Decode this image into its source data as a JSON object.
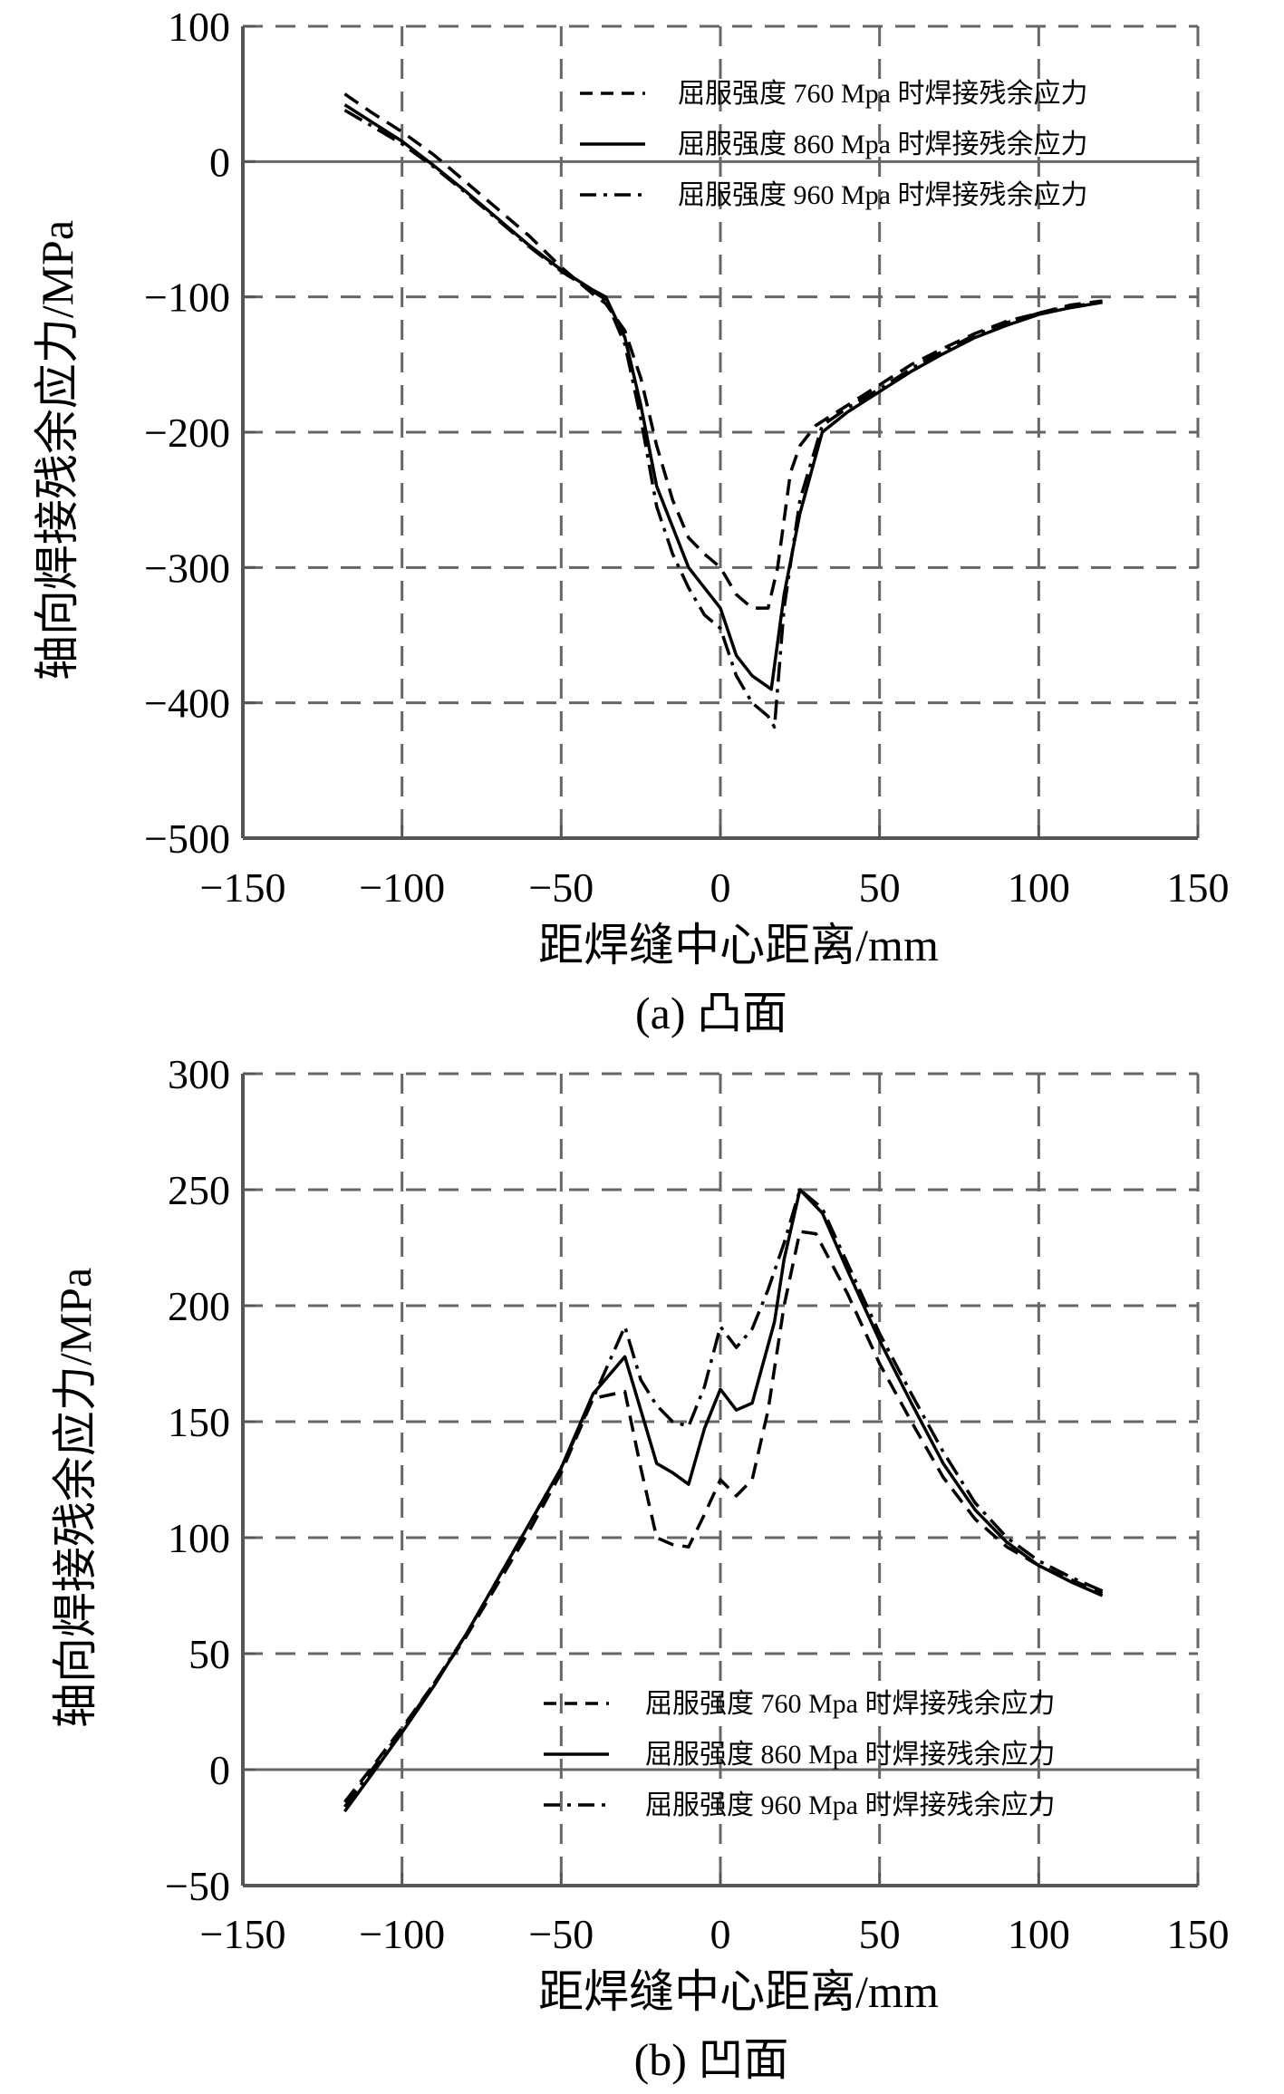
{
  "chart_data": [
    {
      "type": "line",
      "caption": "(a) 凸面",
      "xlabel": "距焊缝中心距离/mm",
      "ylabel": "轴向焊接残余应力/MPa",
      "xlim": [
        -150,
        150
      ],
      "ylim": [
        -500,
        100
      ],
      "xticks": [
        -150,
        -100,
        -50,
        0,
        50,
        100,
        150
      ],
      "yticks": [
        100,
        0,
        -100,
        -200,
        -300,
        -400,
        -500
      ],
      "xtick_labels": [
        "−150",
        "−100",
        "−50",
        "0",
        "50",
        "100",
        "150"
      ],
      "ytick_labels": [
        "100",
        "0",
        "−100",
        "−200",
        "−300",
        "−400",
        "−500"
      ],
      "grid": true,
      "legend_position": "top-right",
      "series": [
        {
          "name": "屈服强度 760 Mpa 时焊接残余应力",
          "dash": "dashed",
          "x": [
            -118,
            -110,
            -100,
            -90,
            -80,
            -70,
            -60,
            -50,
            -40,
            -36,
            -30,
            -25,
            -20,
            -15,
            -10,
            -5,
            0,
            5,
            10,
            15,
            18,
            22,
            25,
            30,
            40,
            50,
            60,
            70,
            80,
            90,
            100,
            110,
            120
          ],
          "y": [
            50,
            37,
            22,
            5,
            -15,
            -35,
            -55,
            -78,
            -98,
            -105,
            -125,
            -160,
            -210,
            -250,
            -278,
            -290,
            -300,
            -320,
            -330,
            -330,
            -300,
            -230,
            -210,
            -195,
            -180,
            -165,
            -150,
            -138,
            -127,
            -118,
            -112,
            -106,
            -103
          ]
        },
        {
          "name": "屈服强度 860 Mpa 时焊接残余应力",
          "dash": "solid",
          "x": [
            -118,
            -110,
            -100,
            -90,
            -80,
            -70,
            -60,
            -50,
            -40,
            -36,
            -30,
            -25,
            -20,
            -15,
            -10,
            -5,
            0,
            5,
            10,
            16,
            20,
            25,
            32,
            40,
            50,
            60,
            70,
            80,
            90,
            100,
            110,
            120
          ],
          "y": [
            42,
            30,
            15,
            -3,
            -22,
            -42,
            -62,
            -80,
            -95,
            -100,
            -130,
            -180,
            -240,
            -270,
            -300,
            -315,
            -330,
            -365,
            -380,
            -390,
            -320,
            -260,
            -200,
            -185,
            -170,
            -155,
            -142,
            -130,
            -121,
            -113,
            -108,
            -104
          ]
        },
        {
          "name": "屈服强度 960 Mpa 时焊接残余应力",
          "dash": "dash-dot",
          "x": [
            -118,
            -110,
            -100,
            -90,
            -80,
            -70,
            -60,
            -50,
            -40,
            -36,
            -30,
            -25,
            -20,
            -15,
            -10,
            -5,
            0,
            5,
            10,
            15,
            17,
            20,
            25,
            32,
            40,
            50,
            60,
            70,
            80,
            90,
            100,
            110,
            120
          ],
          "y": [
            38,
            27,
            13,
            -4,
            -23,
            -43,
            -63,
            -81,
            -96,
            -102,
            -135,
            -190,
            -255,
            -290,
            -315,
            -335,
            -345,
            -380,
            -400,
            -410,
            -418,
            -330,
            -250,
            -195,
            -182,
            -168,
            -153,
            -140,
            -128,
            -119,
            -112,
            -107,
            -104
          ]
        }
      ]
    },
    {
      "type": "line",
      "caption": "(b) 凹面",
      "xlabel": "距焊缝中心距离/mm",
      "ylabel": "轴向焊接残余应力/MPa",
      "xlim": [
        -150,
        150
      ],
      "ylim": [
        -50,
        300
      ],
      "xticks": [
        -150,
        -100,
        -50,
        0,
        50,
        100,
        150
      ],
      "yticks": [
        300,
        250,
        200,
        150,
        100,
        50,
        0,
        -50
      ],
      "xtick_labels": [
        "−150",
        "−100",
        "−50",
        "0",
        "50",
        "100",
        "150"
      ],
      "ytick_labels": [
        "300",
        "250",
        "200",
        "150",
        "100",
        "50",
        "0",
        "−50"
      ],
      "grid": true,
      "legend_position": "bottom-right",
      "series": [
        {
          "name": "屈服强度 760 Mpa 时焊接残余应力",
          "dash": "dashed",
          "x": [
            -118,
            -110,
            -100,
            -90,
            -80,
            -70,
            -60,
            -50,
            -40,
            -30,
            -25,
            -20,
            -15,
            -10,
            -5,
            0,
            5,
            10,
            15,
            20,
            25,
            30,
            40,
            50,
            60,
            70,
            80,
            90,
            100,
            110,
            120
          ],
          "y": [
            -14,
            0,
            18,
            37,
            57,
            80,
            103,
            128,
            160,
            163,
            130,
            100,
            97,
            96,
            110,
            125,
            118,
            125,
            155,
            200,
            232,
            231,
            205,
            175,
            150,
            126,
            108,
            96,
            88,
            82,
            76
          ]
        },
        {
          "name": "屈服强度 860 Mpa 时焊接残余应力",
          "dash": "solid",
          "x": [
            -118,
            -110,
            -100,
            -90,
            -80,
            -70,
            -60,
            -50,
            -40,
            -30,
            -25,
            -20,
            -15,
            -10,
            -5,
            0,
            5,
            10,
            17,
            20,
            25,
            32,
            40,
            50,
            60,
            70,
            80,
            90,
            100,
            110,
            120
          ],
          "y": [
            -18,
            -3,
            16,
            36,
            58,
            82,
            106,
            130,
            162,
            178,
            155,
            132,
            128,
            123,
            147,
            164,
            155,
            158,
            193,
            220,
            250,
            240,
            215,
            185,
            158,
            132,
            112,
            98,
            88,
            81,
            75
          ]
        },
        {
          "name": "屈服强度 960 Mpa 时焊接残余应力",
          "dash": "dash-dot",
          "x": [
            -118,
            -110,
            -100,
            -90,
            -80,
            -70,
            -60,
            -50,
            -40,
            -30,
            -25,
            -20,
            -15,
            -10,
            -5,
            0,
            5,
            10,
            15,
            20,
            25,
            32,
            40,
            50,
            60,
            70,
            80,
            90,
            100,
            110,
            120
          ],
          "y": [
            -16,
            -1,
            17,
            37,
            58,
            82,
            106,
            130,
            160,
            191,
            168,
            157,
            150,
            148,
            165,
            191,
            182,
            190,
            207,
            227,
            250,
            242,
            218,
            188,
            162,
            137,
            115,
            100,
            90,
            83,
            77
          ]
        }
      ]
    }
  ]
}
